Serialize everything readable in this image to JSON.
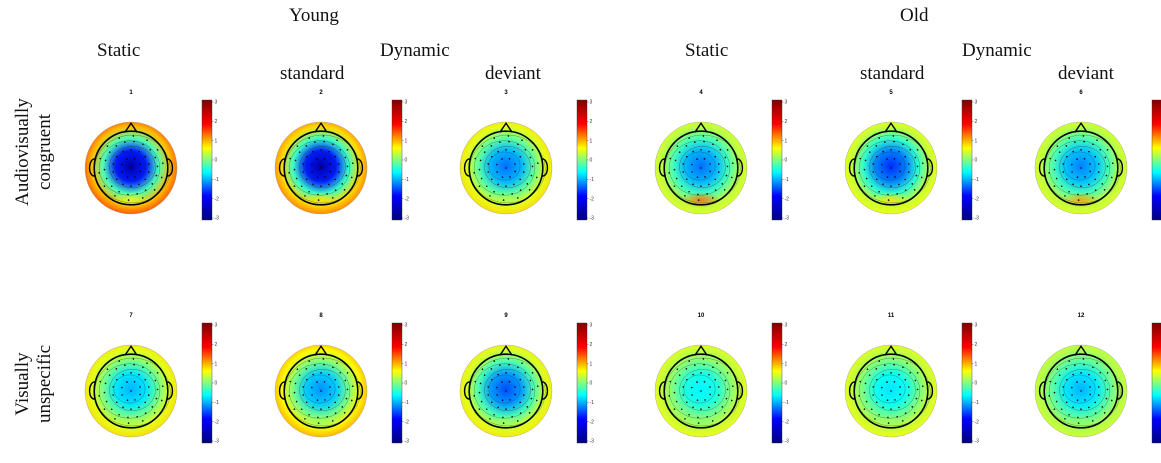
{
  "headers": {
    "young": "Young",
    "old": "Old",
    "young_static": "Static",
    "young_dynamic": "Dynamic",
    "young_standard": "standard",
    "young_deviant": "deviant",
    "old_static": "Static",
    "old_dynamic": "Dynamic",
    "old_standard": "standard",
    "old_deviant": "deviant"
  },
  "rows": {
    "row1_line1": "Audiovisually",
    "row1_line2": "congruent",
    "row2_line1": "Visually",
    "row2_line2": "unspecific"
  },
  "colorbar": {
    "ticks": [
      "3",
      "2",
      "1",
      "0",
      "-1",
      "-2",
      "-3"
    ],
    "colors": [
      "#7f0000",
      "#ff0000",
      "#ffff00",
      "#00ffff",
      "#0000ff",
      "#00007f"
    ]
  },
  "panels": [
    {
      "label": "1",
      "center": -2.8,
      "edge": 1.9,
      "occipital": 0.6
    },
    {
      "label": "2",
      "center": -2.8,
      "edge": 1.6,
      "occipital": 0.9
    },
    {
      "label": "3",
      "center": -1.6,
      "edge": 1.0,
      "occipital": 0.3
    },
    {
      "label": "4",
      "center": -1.6,
      "edge": 0.6,
      "occipital": 1.6
    },
    {
      "label": "5",
      "center": -2.0,
      "edge": 0.7,
      "occipital": 0.9
    },
    {
      "label": "6",
      "center": -1.5,
      "edge": 0.6,
      "occipital": 1.3
    },
    {
      "label": "7",
      "center": -1.2,
      "edge": 1.0,
      "occipital": 0.3
    },
    {
      "label": "8",
      "center": -1.4,
      "edge": 1.3,
      "occipital": 0.2
    },
    {
      "label": "9",
      "center": -1.8,
      "edge": 0.9,
      "occipital": 0.2
    },
    {
      "label": "10",
      "center": -0.8,
      "edge": 0.7,
      "occipital": 0.1
    },
    {
      "label": "11",
      "center": -0.9,
      "edge": 0.7,
      "occipital": 0.2
    },
    {
      "label": "12",
      "center": -1.2,
      "edge": 0.5,
      "occipital": 0.1
    }
  ]
}
